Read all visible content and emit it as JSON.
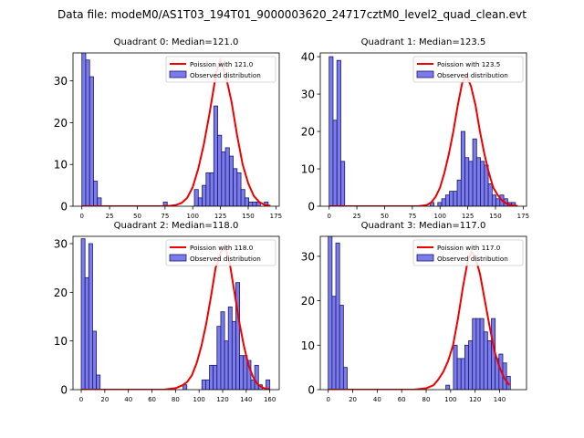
{
  "figure_title": "Data file: modeM0/AS1T03_194T01_9000003620_24717cztM0_level2_quad_clean.evt",
  "colors": {
    "hist_fill": "#7b7bee",
    "hist_edge": "#1a1a66",
    "poisson_line": "#ee0000"
  },
  "chart_data": [
    {
      "type": "bar",
      "title": "Quadrant 0: Median=121.0",
      "legend": {
        "poisson": "Poission with 121.0",
        "observed": "Observed distribution",
        "placement": "upper-right"
      },
      "xlim": [
        -8,
        178
      ],
      "ylim": [
        0,
        36.7
      ],
      "xticks": [
        0,
        25,
        50,
        75,
        100,
        125,
        150,
        175
      ],
      "yticks": [
        0,
        10,
        20,
        30
      ],
      "bin_width": 3.5,
      "bins": [
        [
          0,
          37
        ],
        [
          3.5,
          35
        ],
        [
          7,
          31
        ],
        [
          10.5,
          6
        ],
        [
          14,
          2
        ],
        [
          73.5,
          1
        ],
        [
          101.5,
          4
        ],
        [
          105,
          2
        ],
        [
          108.5,
          5
        ],
        [
          112,
          8
        ],
        [
          115.5,
          8
        ],
        [
          119,
          24
        ],
        [
          122.5,
          17
        ],
        [
          126,
          13
        ],
        [
          129.5,
          14
        ],
        [
          133,
          12
        ],
        [
          136.5,
          9
        ],
        [
          140,
          8
        ],
        [
          143.5,
          4
        ],
        [
          147,
          2
        ],
        [
          150.5,
          1
        ],
        [
          154,
          1
        ],
        [
          157.5,
          1
        ],
        [
          164.5,
          1
        ]
      ],
      "poisson_curve": {
        "x": [
          0,
          70,
          80,
          85,
          90,
          95,
          100,
          105,
          110,
          115,
          120,
          121,
          125,
          130,
          135,
          140,
          145,
          150,
          155,
          160,
          165,
          170
        ],
        "y": [
          0,
          0,
          0.1,
          0.3,
          0.8,
          2,
          4.6,
          9,
          14.8,
          22,
          30,
          32,
          35,
          31,
          25,
          17,
          10,
          5.5,
          2.5,
          1,
          0.3,
          0.1
        ]
      }
    },
    {
      "type": "bar",
      "title": "Quadrant 1: Median=123.5",
      "legend": {
        "poisson": "Poission with 123.5",
        "observed": "Observed distribution",
        "placement": "upper-right"
      },
      "xlim": [
        -8,
        178
      ],
      "ylim": [
        0,
        41
      ],
      "xticks": [
        0,
        25,
        50,
        75,
        100,
        125,
        150,
        175
      ],
      "yticks": [
        0,
        10,
        20,
        30,
        40
      ],
      "bin_width": 3.5,
      "bins": [
        [
          0,
          40
        ],
        [
          3.5,
          23
        ],
        [
          7,
          39
        ],
        [
          10.5,
          12
        ],
        [
          91,
          1
        ],
        [
          98,
          1
        ],
        [
          101.5,
          2
        ],
        [
          105,
          3
        ],
        [
          108.5,
          4
        ],
        [
          112,
          4
        ],
        [
          115.5,
          7
        ],
        [
          119,
          20
        ],
        [
          122.5,
          13
        ],
        [
          126,
          12
        ],
        [
          129.5,
          18
        ],
        [
          133,
          13
        ],
        [
          136.5,
          12
        ],
        [
          140,
          11
        ],
        [
          143.5,
          6
        ],
        [
          147,
          3
        ],
        [
          150.5,
          2
        ],
        [
          154,
          3
        ],
        [
          157.5,
          2
        ],
        [
          161,
          1
        ],
        [
          164.5,
          1
        ]
      ],
      "poisson_curve": {
        "x": [
          0,
          80,
          88,
          92,
          96,
          100,
          104,
          108,
          112,
          116,
          120,
          124,
          128,
          132,
          136,
          140,
          144,
          148,
          152,
          156,
          160,
          165,
          170
        ],
        "y": [
          0,
          0,
          0.3,
          1,
          2.5,
          5,
          9,
          14,
          20,
          27,
          33,
          35,
          32,
          27,
          20,
          14,
          9,
          5,
          3,
          1.5,
          0.7,
          0.2,
          0.1
        ]
      }
    },
    {
      "type": "bar",
      "title": "Quadrant 2: Median=118.0",
      "legend": {
        "poisson": "Poission with 118.0",
        "observed": "Observed distribution",
        "placement": "upper-right"
      },
      "xlim": [
        -7,
        168
      ],
      "ylim": [
        0,
        31.5
      ],
      "xticks": [
        0,
        20,
        40,
        60,
        80,
        100,
        120,
        140,
        160
      ],
      "yticks": [
        0,
        10,
        20,
        30
      ],
      "bin_width": 3.2,
      "bins": [
        [
          0,
          31
        ],
        [
          3.2,
          23
        ],
        [
          6.4,
          30
        ],
        [
          9.6,
          12
        ],
        [
          12.8,
          3
        ],
        [
          86.4,
          1
        ],
        [
          102.4,
          2
        ],
        [
          105.6,
          2
        ],
        [
          108.8,
          5
        ],
        [
          112,
          5
        ],
        [
          115.2,
          13
        ],
        [
          118.4,
          16
        ],
        [
          121.6,
          10
        ],
        [
          124.8,
          17
        ],
        [
          128,
          14
        ],
        [
          131.2,
          22
        ],
        [
          134.4,
          7
        ],
        [
          137.6,
          7
        ],
        [
          140.8,
          6
        ],
        [
          144,
          2
        ],
        [
          147.2,
          5
        ],
        [
          150.4,
          1
        ],
        [
          156.8,
          2
        ]
      ],
      "poisson_curve": {
        "x": [
          0,
          70,
          80,
          86,
          90,
          94,
          98,
          102,
          106,
          110,
          114,
          118,
          122,
          126,
          130,
          134,
          138,
          142,
          146,
          150,
          155,
          160
        ],
        "y": [
          0,
          0,
          0.3,
          0.9,
          1.6,
          3,
          5.5,
          9,
          13.5,
          19,
          25,
          28,
          29.5,
          26,
          20,
          14,
          9,
          5,
          2.5,
          1,
          0.3,
          0.1
        ]
      }
    },
    {
      "type": "bar",
      "title": "Quadrant 3: Median=117.0",
      "legend": {
        "poisson": "Poission with 117.0",
        "observed": "Observed distribution",
        "placement": "upper-right"
      },
      "xlim": [
        -6.5,
        162
      ],
      "ylim": [
        0,
        34.5
      ],
      "xticks": [
        0,
        20,
        40,
        60,
        80,
        100,
        120,
        140
      ],
      "yticks": [
        0,
        10,
        20,
        30
      ],
      "bin_width": 3.1,
      "bins": [
        [
          0,
          35
        ],
        [
          3.1,
          21
        ],
        [
          6.2,
          33
        ],
        [
          9.3,
          19
        ],
        [
          12.4,
          5
        ],
        [
          96.1,
          1
        ],
        [
          102.3,
          10
        ],
        [
          105.4,
          7
        ],
        [
          108.5,
          7
        ],
        [
          111.6,
          10
        ],
        [
          114.7,
          11
        ],
        [
          117.8,
          16
        ],
        [
          120.9,
          16
        ],
        [
          124,
          16
        ],
        [
          127.1,
          13
        ],
        [
          130.2,
          11
        ],
        [
          133.3,
          16
        ],
        [
          136.4,
          7
        ],
        [
          139.5,
          8
        ],
        [
          142.6,
          6
        ],
        [
          145.7,
          3
        ]
      ],
      "poisson_curve": {
        "x": [
          0,
          70,
          80,
          86,
          90,
          94,
          98,
          102,
          106,
          110,
          114,
          117,
          120,
          124,
          128,
          132,
          136,
          140,
          144,
          148
        ],
        "y": [
          0,
          0,
          0.3,
          1,
          2.3,
          4,
          6.5,
          10,
          16,
          23,
          29,
          31,
          30,
          26,
          20,
          14,
          8.5,
          5,
          2.5,
          1
        ]
      }
    }
  ]
}
